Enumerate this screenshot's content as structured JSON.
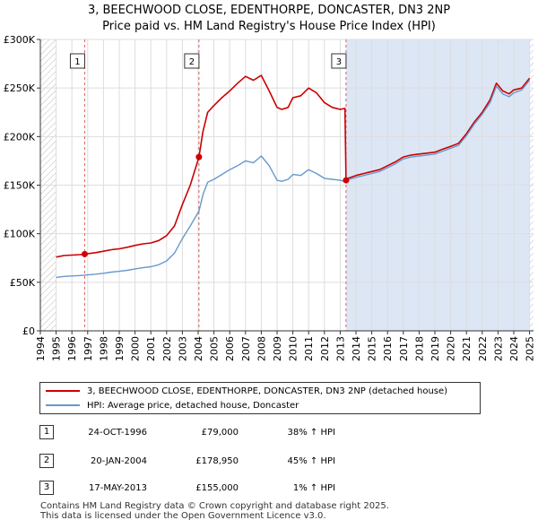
{
  "title": {
    "line1": "3, BEECHWOOD CLOSE, EDENTHORPE, DONCASTER, DN3 2NP",
    "line2": "Price paid vs. HM Land Registry's House Price Index (HPI)"
  },
  "colors": {
    "price_paid": "#cc0000",
    "hpi": "#6699cc",
    "shade": "#dde6f4",
    "vline": "#e06060"
  },
  "chart_data": {
    "type": "line",
    "xlim": [
      1994,
      2025.25
    ],
    "ylim": [
      0,
      300000
    ],
    "x_ticks": [
      "1994",
      "1995",
      "1996",
      "1997",
      "1998",
      "1999",
      "2000",
      "2001",
      "2002",
      "2003",
      "2004",
      "2005",
      "2006",
      "2007",
      "2008",
      "2009",
      "2010",
      "2011",
      "2012",
      "2013",
      "2014",
      "2015",
      "2016",
      "2017",
      "2018",
      "2019",
      "2020",
      "2021",
      "2022",
      "2023",
      "2024",
      "2025"
    ],
    "y_ticks": [
      {
        "value": 0,
        "label": "£0"
      },
      {
        "value": 50000,
        "label": "£50K"
      },
      {
        "value": 100000,
        "label": "£100K"
      },
      {
        "value": 150000,
        "label": "£150K"
      },
      {
        "value": 200000,
        "label": "£200K"
      },
      {
        "value": 250000,
        "label": "£250K"
      },
      {
        "value": 300000,
        "label": "£300K"
      }
    ],
    "hatched_ranges": [
      [
        1994,
        1995
      ],
      [
        2025,
        2025.25
      ]
    ],
    "series": [
      {
        "name": "3, BEECHWOOD CLOSE, EDENTHORPE, DONCASTER, DN3 2NP (detached house)",
        "key": "price_paid",
        "x": [
          1995.0,
          1995.5,
          1996.0,
          1996.5,
          1996.81,
          1997.0,
          1997.5,
          1998.0,
          1998.5,
          1999.0,
          1999.5,
          2000.0,
          2000.5,
          2001.0,
          2001.5,
          2002.0,
          2002.5,
          2003.0,
          2003.5,
          2004.05,
          2004.3,
          2004.6,
          2005.0,
          2005.5,
          2006.0,
          2006.5,
          2007.0,
          2007.5,
          2008.0,
          2008.5,
          2009.0,
          2009.3,
          2009.7,
          2010.0,
          2010.5,
          2011.0,
          2011.5,
          2012.0,
          2012.5,
          2013.0,
          2013.3,
          2013.37,
          2013.5,
          2014.0,
          2014.5,
          2015.0,
          2015.5,
          2016.0,
          2016.5,
          2017.0,
          2017.5,
          2018.0,
          2018.5,
          2019.0,
          2019.5,
          2020.0,
          2020.5,
          2021.0,
          2021.5,
          2022.0,
          2022.5,
          2022.9,
          2023.3,
          2023.7,
          2024.0,
          2024.5,
          2025.0
        ],
        "y": [
          76000,
          77500,
          78000,
          78500,
          79000,
          79500,
          80500,
          82000,
          83500,
          84500,
          86000,
          88000,
          89500,
          90500,
          93000,
          98000,
          108000,
          130000,
          150000,
          178950,
          205000,
          225000,
          232000,
          240000,
          247000,
          255000,
          262000,
          258000,
          263000,
          247000,
          230000,
          228000,
          230000,
          240000,
          242000,
          250000,
          245000,
          235000,
          230000,
          228000,
          229000,
          155000,
          157000,
          160000,
          162000,
          164000,
          166000,
          170000,
          174000,
          179000,
          181000,
          182000,
          183000,
          184000,
          187000,
          190000,
          193000,
          203000,
          215000,
          225000,
          238000,
          255000,
          247000,
          244000,
          248000,
          250000,
          260000
        ]
      },
      {
        "name": "HPI: Average price, detached house, Doncaster",
        "key": "hpi",
        "x": [
          1995.0,
          1995.5,
          1996.0,
          1996.5,
          1996.81,
          1997.0,
          1997.5,
          1998.0,
          1998.5,
          1999.0,
          1999.5,
          2000.0,
          2000.5,
          2001.0,
          2001.5,
          2002.0,
          2002.5,
          2003.0,
          2003.5,
          2004.05,
          2004.3,
          2004.6,
          2005.0,
          2005.5,
          2006.0,
          2006.5,
          2007.0,
          2007.5,
          2008.0,
          2008.5,
          2009.0,
          2009.3,
          2009.7,
          2010.0,
          2010.5,
          2011.0,
          2011.5,
          2012.0,
          2012.5,
          2013.0,
          2013.37,
          2013.5,
          2014.0,
          2014.5,
          2015.0,
          2015.5,
          2016.0,
          2016.5,
          2017.0,
          2017.5,
          2018.0,
          2018.5,
          2019.0,
          2019.5,
          2020.0,
          2020.5,
          2021.0,
          2021.5,
          2022.0,
          2022.5,
          2022.9,
          2023.3,
          2023.7,
          2024.0,
          2024.5,
          2025.0
        ],
        "y": [
          55000,
          56000,
          56500,
          57000,
          57300,
          57600,
          58300,
          59300,
          60500,
          61300,
          62300,
          63800,
          65000,
          66000,
          68000,
          72000,
          80000,
          95000,
          108000,
          123300,
          140000,
          153000,
          156000,
          161000,
          166000,
          170000,
          175000,
          173000,
          180000,
          170000,
          155000,
          154000,
          156000,
          161000,
          160000,
          166000,
          162000,
          157000,
          156000,
          155000,
          153500,
          155500,
          158000,
          160000,
          162000,
          164000,
          168000,
          172000,
          177000,
          179000,
          180000,
          181000,
          182000,
          185000,
          188000,
          191000,
          201000,
          213000,
          223000,
          235000,
          252000,
          244000,
          241000,
          245000,
          248000,
          258000
        ]
      }
    ],
    "sales": [
      {
        "num": "1",
        "x": 1996.81,
        "y": 79000
      },
      {
        "num": "2",
        "x": 2004.05,
        "y": 178950
      },
      {
        "num": "3",
        "x": 2013.37,
        "y": 155000
      }
    ]
  },
  "legend": {
    "price_paid": "3, BEECHWOOD CLOSE, EDENTHORPE, DONCASTER, DN3 2NP (detached house)",
    "hpi": "HPI: Average price, detached house, Doncaster"
  },
  "sales_table": [
    {
      "num": "1",
      "date": "24-OCT-1996",
      "price": "£79,000",
      "hpi": "38% ↑ HPI"
    },
    {
      "num": "2",
      "date": "20-JAN-2004",
      "price": "£178,950",
      "hpi": "45% ↑ HPI"
    },
    {
      "num": "3",
      "date": "17-MAY-2013",
      "price": "£155,000",
      "hpi": "1% ↑ HPI"
    }
  ],
  "footer": {
    "line1": "Contains HM Land Registry data © Crown copyright and database right 2025.",
    "line2": "This data is licensed under the Open Government Licence v3.0."
  }
}
